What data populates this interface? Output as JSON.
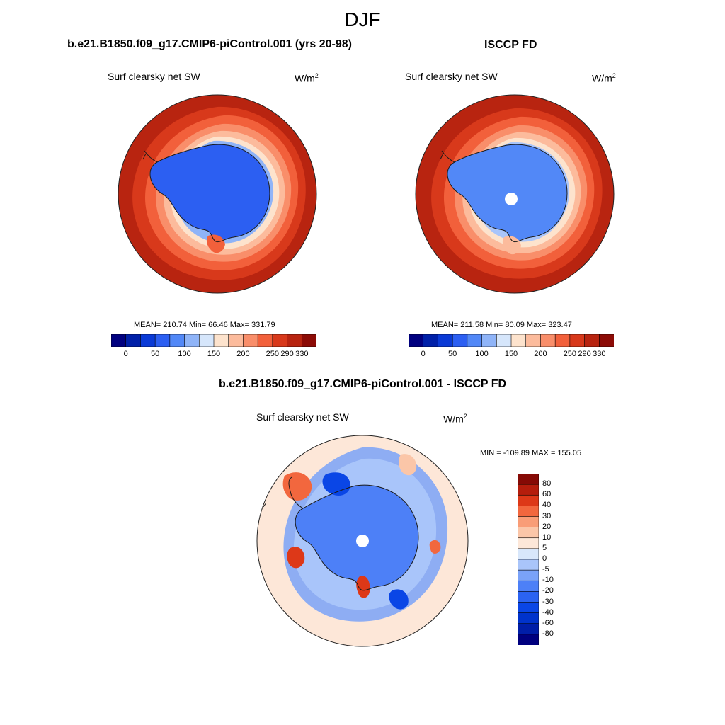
{
  "title": "DJF",
  "colors": {
    "abs_scale": [
      "#00007f",
      "#0020a8",
      "#0a3ad6",
      "#2c5ff2",
      "#5288f7",
      "#8fb4f8",
      "#d6e6fb",
      "#fde3cd",
      "#fcbb9c",
      "#f98e6a",
      "#f2603b",
      "#d8391b",
      "#b82410",
      "#8c0b06"
    ],
    "diff_scale": [
      "#00007f",
      "#001ea8",
      "#0033cc",
      "#0a46e6",
      "#2b63f2",
      "#4d80f7",
      "#7aa2f8",
      "#a9c5fa",
      "#d8e7fb",
      "#fde7d8",
      "#fbc6a8",
      "#f99d77",
      "#f2673e",
      "#dd3818",
      "#b51d0c",
      "#860a05"
    ],
    "land_outline": "#1a1a1a"
  },
  "panel_model": {
    "title": "b.e21.B1850.f09_g17.CMIP6-piControl.001 (yrs 20-98)",
    "variable": "Surf clearsky net SW",
    "units_base": "W/m",
    "units_exp": "2",
    "stats": "MEAN= 210.74  Min=  66.46  Max= 331.79"
  },
  "panel_obs": {
    "title": "ISCCP FD",
    "variable": "Surf clearsky net SW",
    "units_base": "W/m",
    "units_exp": "2",
    "stats": "MEAN= 211.58  Min=  80.09  Max= 323.47"
  },
  "panel_diff": {
    "title": "b.e21.B1850.f09_g17.CMIP6-piControl.001 - ISCCP FD",
    "variable": "Surf clearsky net SW",
    "units_base": "W/m",
    "units_exp": "2",
    "stats": "MIN = -109.89 MAX = 155.05"
  },
  "abs_colorbar_labels": [
    "0",
    "50",
    "100",
    "150",
    "200",
    "250",
    "290",
    "330"
  ],
  "diff_colorbar_labels": [
    "80",
    "60",
    "40",
    "30",
    "20",
    "10",
    "5",
    "0",
    "-5",
    "-10",
    "-20",
    "-30",
    "-40",
    "-60",
    "-80"
  ],
  "chart_data": [
    {
      "type": "heatmap",
      "projection": "south polar stereographic",
      "title": "b.e21.B1850.f09_g17.CMIP6-piControl.001 (yrs 20-98)",
      "variable": "Surf clearsky net SW",
      "units": "W/m2",
      "mean": 210.74,
      "min": 66.46,
      "max": 331.79,
      "levels": [
        0,
        50,
        100,
        150,
        200,
        250,
        290,
        330
      ]
    },
    {
      "type": "heatmap",
      "projection": "south polar stereographic",
      "title": "ISCCP FD",
      "variable": "Surf clearsky net SW",
      "units": "W/m2",
      "mean": 211.58,
      "min": 80.09,
      "max": 323.47,
      "levels": [
        0,
        50,
        100,
        150,
        200,
        250,
        290,
        330
      ]
    },
    {
      "type": "heatmap",
      "projection": "south polar stereographic",
      "title": "b.e21.B1850.f09_g17.CMIP6-piControl.001 - ISCCP FD",
      "variable": "Surf clearsky net SW",
      "units": "W/m2",
      "min": -109.89,
      "max": 155.05,
      "levels": [
        -80,
        -60,
        -40,
        -30,
        -20,
        -10,
        -5,
        0,
        5,
        10,
        20,
        30,
        40,
        60,
        80
      ]
    }
  ]
}
